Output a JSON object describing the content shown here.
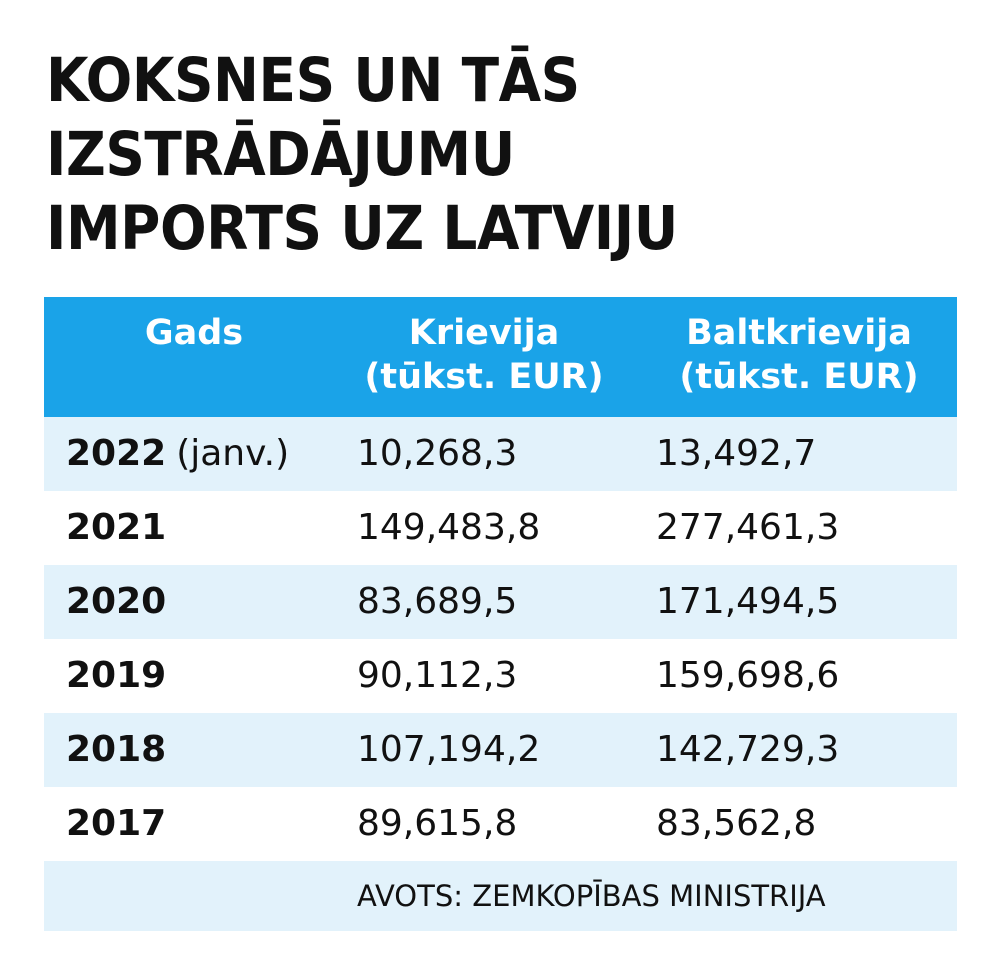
{
  "chart_data": {
    "type": "table",
    "title_lines": [
      "KOKSNES UN TĀS",
      "IZSTRĀDĀJUMU",
      "IMPORTS UZ LATVIJU"
    ],
    "columns": [
      {
        "lines": [
          "Gads"
        ]
      },
      {
        "lines": [
          "Krievija",
          "(tūkst. EUR)"
        ]
      },
      {
        "lines": [
          "Baltkrievija",
          "(tūkst. EUR)"
        ]
      }
    ],
    "rows": [
      {
        "year": "2022",
        "note": "(janv.)",
        "krievija": "10,268,3",
        "baltkrievija": "13,492,7"
      },
      {
        "year": "2021",
        "note": "",
        "krievija": "149,483,8",
        "baltkrievija": "277,461,3"
      },
      {
        "year": "2020",
        "note": "",
        "krievija": "83,689,5",
        "baltkrievija": "171,494,5"
      },
      {
        "year": "2019",
        "note": "",
        "krievija": "90,112,3",
        "baltkrievija": "159,698,6"
      },
      {
        "year": "2018",
        "note": "",
        "krievija": "107,194,2",
        "baltkrievija": "142,729,3"
      },
      {
        "year": "2017",
        "note": "",
        "krievija": "89,615,8",
        "baltkrievija": "83,562,8"
      }
    ],
    "source": "AVOTS: ZEMKOPĪBAS MINISTRIJA"
  },
  "colors": {
    "header_bg": "#1aa3e8",
    "row_shade": "#e2f2fb",
    "text": "#111111"
  }
}
